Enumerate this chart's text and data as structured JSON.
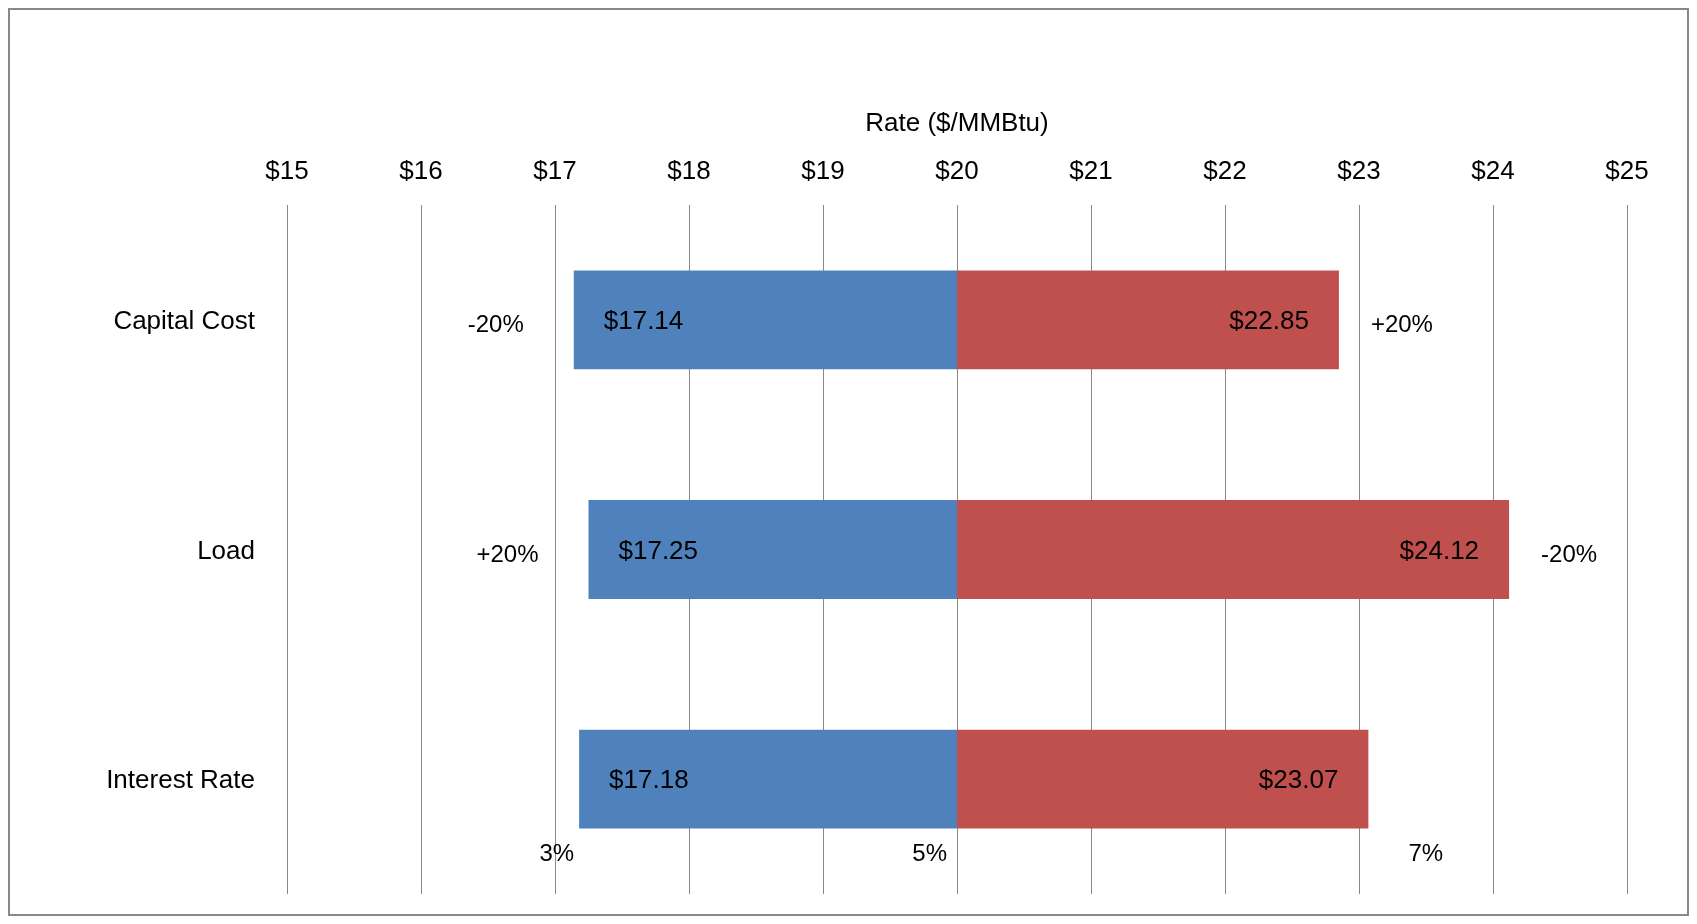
{
  "chart_data": {
    "type": "bar",
    "orientation": "horizontal",
    "xlabel": "Rate ($/MMBtu)",
    "categories": [
      "Capital Cost",
      "Load",
      "Interest Rate"
    ],
    "series": [
      {
        "color": "#4f81bd",
        "base": [
          20,
          20,
          20
        ],
        "values": [
          -2.86,
          -2.75,
          -2.82
        ],
        "value_labels": [
          "$17.14",
          "$17.25",
          "$17.18"
        ]
      },
      {
        "color": "#c0504d",
        "base": [
          20,
          20,
          20
        ],
        "values": [
          2.85,
          4.12,
          3.07
        ],
        "value_labels": [
          "$22.85",
          "$24.12",
          "$23.07"
        ]
      }
    ],
    "xlim": [
      15,
      25
    ],
    "xticks": [
      {
        "value": 15,
        "label": "$15"
      },
      {
        "value": 16,
        "label": "$16"
      },
      {
        "value": 17,
        "label": "$17"
      },
      {
        "value": 18,
        "label": "$18"
      },
      {
        "value": 19,
        "label": "$19"
      },
      {
        "value": 20,
        "label": "$20"
      },
      {
        "value": 21,
        "label": "$21"
      },
      {
        "value": 22,
        "label": "$22"
      },
      {
        "value": 23,
        "label": "$23"
      },
      {
        "value": 24,
        "label": "$24"
      },
      {
        "value": 25,
        "label": "$25"
      }
    ],
    "grid": "x",
    "annotations": [
      {
        "text": "-20%",
        "x": 17.14,
        "y": "Capital Cost"
      },
      {
        "text": "+20%",
        "x": 22.85,
        "y": "Capital Cost"
      },
      {
        "text": "+20%",
        "x": 17.25,
        "y": "Load"
      },
      {
        "text": "-20%",
        "x": 24.12,
        "y": "Load"
      },
      {
        "text": "3%",
        "x": 17.18,
        "y": "Interest Rate"
      },
      {
        "text": "5%",
        "x": 20,
        "y": "Interest Rate"
      },
      {
        "text": "7%",
        "x": 23.07,
        "y": "Interest Rate"
      }
    ]
  }
}
